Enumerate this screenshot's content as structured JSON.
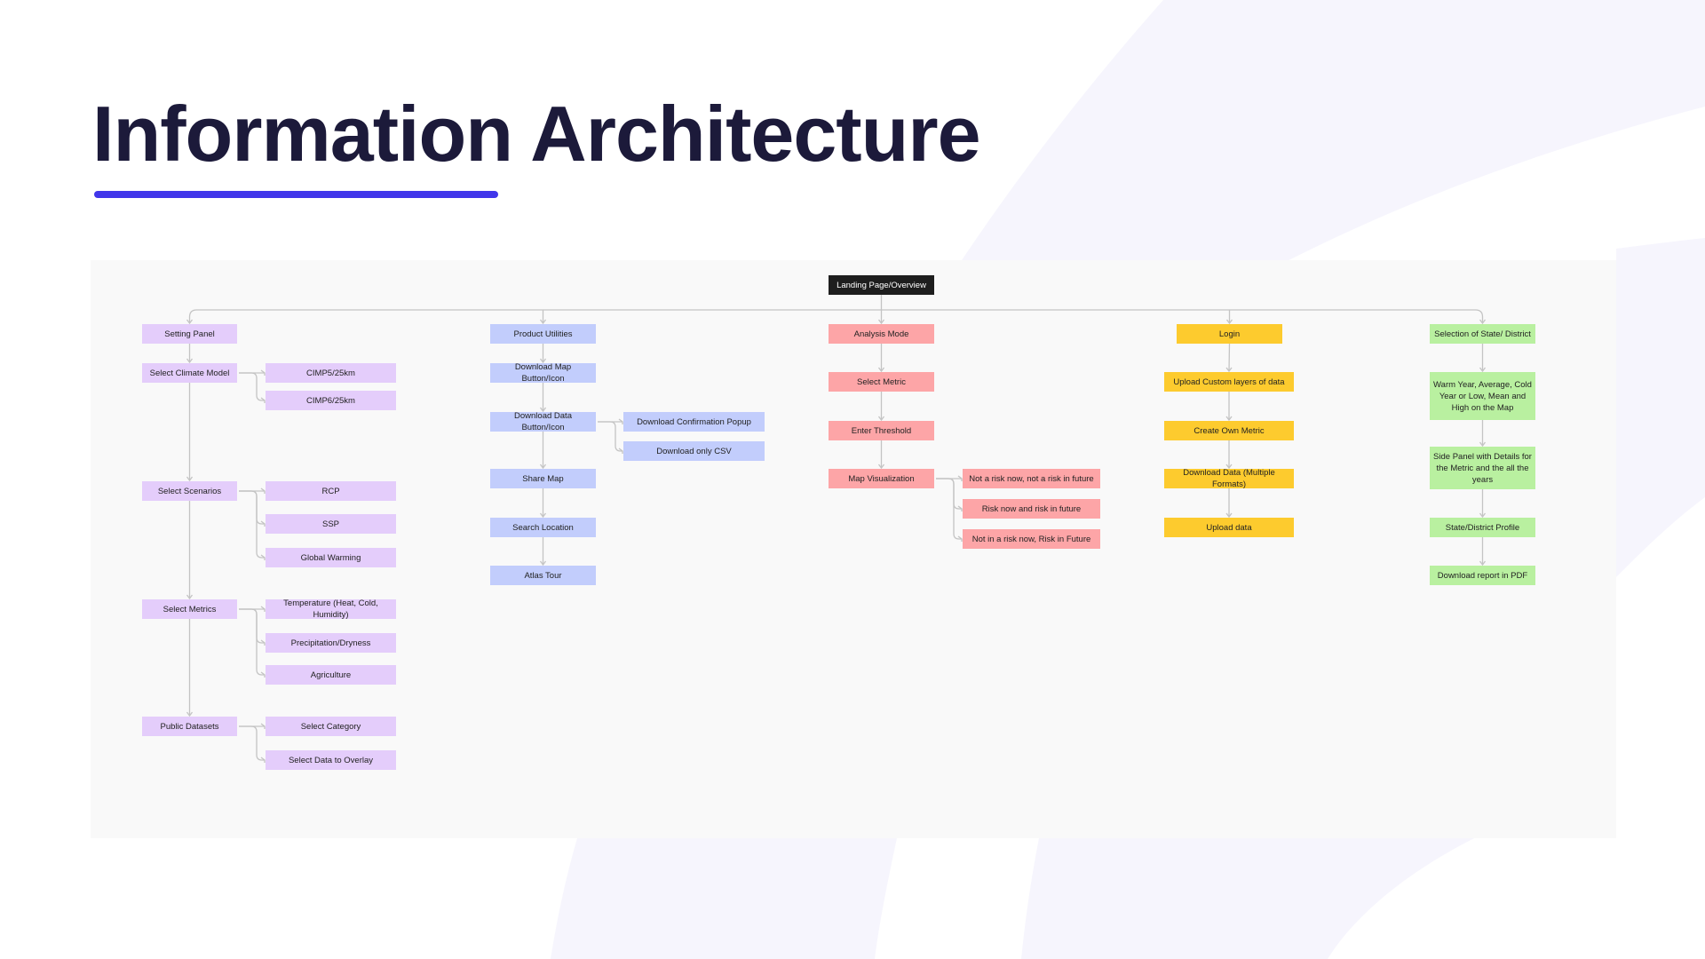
{
  "title": "Information Architecture",
  "colors": {
    "accent": "#4136ea",
    "setting": "#e4cdfb",
    "product": "#c2cdfc",
    "analysis": "#fda5a7",
    "login": "#fdcb2e",
    "state": "#b9f0a0",
    "root": "#1e1e1e"
  },
  "diagram": {
    "root": "Landing Page/Overview",
    "setting": {
      "label": "Setting Panel",
      "climate_model": {
        "label": "Select Climate Model",
        "children": [
          "CIMP5/25km",
          "CIMP6/25km"
        ]
      },
      "scenarios": {
        "label": "Select Scenarios",
        "children": [
          "RCP",
          "SSP",
          "Global Warming"
        ]
      },
      "metrics": {
        "label": "Select Metrics",
        "children": [
          "Temperature (Heat, Cold, Humidity)",
          "Precipitation/Dryness",
          "Agriculture"
        ]
      },
      "datasets": {
        "label": "Public Datasets",
        "children": [
          "Select Category",
          "Select Data to Overlay"
        ]
      }
    },
    "product": {
      "label": "Product Utilities",
      "items": [
        "Download Map Button/Icon",
        "Download Data Button/Icon",
        "Share Map",
        "Search Location",
        "Atlas Tour"
      ],
      "download_children": [
        "Download Confirmation Popup",
        "Download only CSV"
      ]
    },
    "analysis": {
      "label": "Analysis Mode",
      "items": [
        "Select Metric",
        "Enter Threshold",
        "Map Visualization"
      ],
      "map_children": [
        "Not a risk now, not a risk in future",
        "Risk now and risk in future",
        "Not in a risk now, Risk in Future"
      ]
    },
    "login": {
      "label": "Login",
      "items": [
        "Upload Custom layers of data",
        "Create Own Metric",
        "Download Data (Multiple Formats)",
        "Upload data"
      ]
    },
    "state": {
      "label": "Selection of State/ District",
      "items": [
        "Warm Year, Average, Cold Year or Low, Mean and High on the Map",
        "Side Panel with Details for the Metric and the all the years",
        "State/District Profile",
        "Download report in PDF"
      ]
    }
  }
}
